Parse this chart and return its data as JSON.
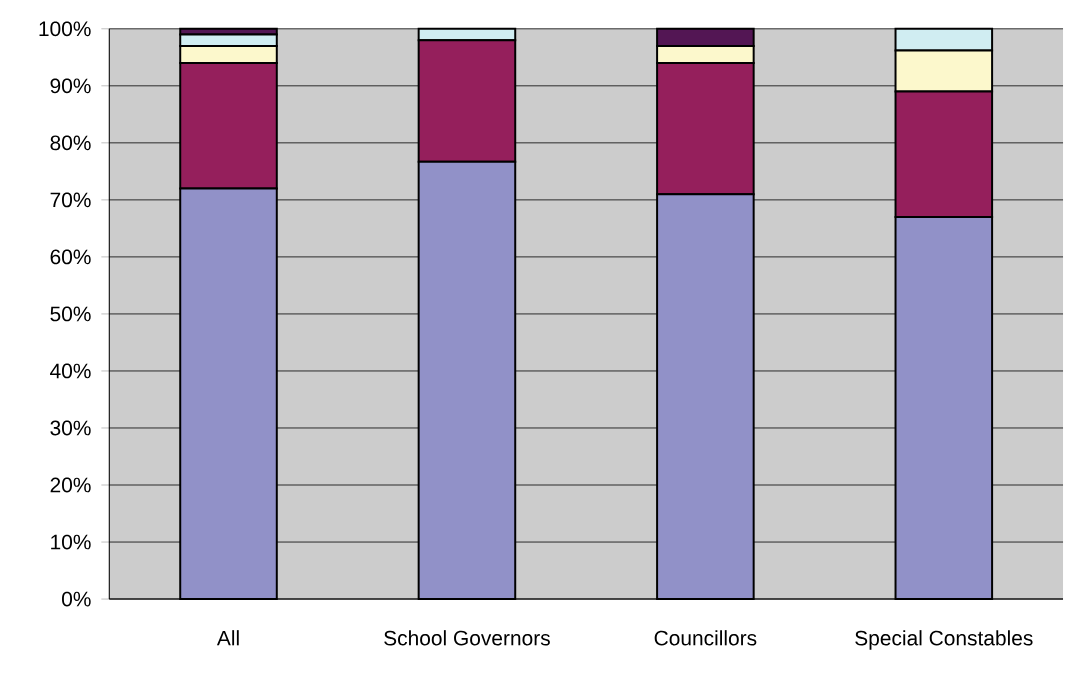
{
  "chart_data": {
    "type": "bar",
    "stacked": true,
    "categories": [
      "All",
      "School Governors",
      "Councillors",
      "Special Constables"
    ],
    "series": [
      {
        "color": "#9191c8",
        "values": [
          72,
          76.7,
          71,
          67
        ]
      },
      {
        "color": "#951f5c",
        "values": [
          22,
          21.3,
          23,
          22
        ]
      },
      {
        "color": "#fcf8cc",
        "values": [
          3,
          0,
          3,
          7.2
        ]
      },
      {
        "color": "#d0edf2",
        "values": [
          2,
          2,
          0,
          3.8
        ]
      },
      {
        "color": "#531654",
        "values": [
          1,
          0,
          3,
          0
        ]
      }
    ],
    "ylim": [
      0,
      100
    ],
    "yticks": [
      {
        "value": 0,
        "label": "0%"
      },
      {
        "value": 10,
        "label": "10%"
      },
      {
        "value": 20,
        "label": "20%"
      },
      {
        "value": 30,
        "label": "30%"
      },
      {
        "value": 40,
        "label": "40%"
      },
      {
        "value": 50,
        "label": "50%"
      },
      {
        "value": 60,
        "label": "60%"
      },
      {
        "value": 70,
        "label": "70%"
      },
      {
        "value": 80,
        "label": "80%"
      },
      {
        "value": 90,
        "label": "90%"
      },
      {
        "value": 100,
        "label": "100%"
      }
    ],
    "grid": "y"
  }
}
